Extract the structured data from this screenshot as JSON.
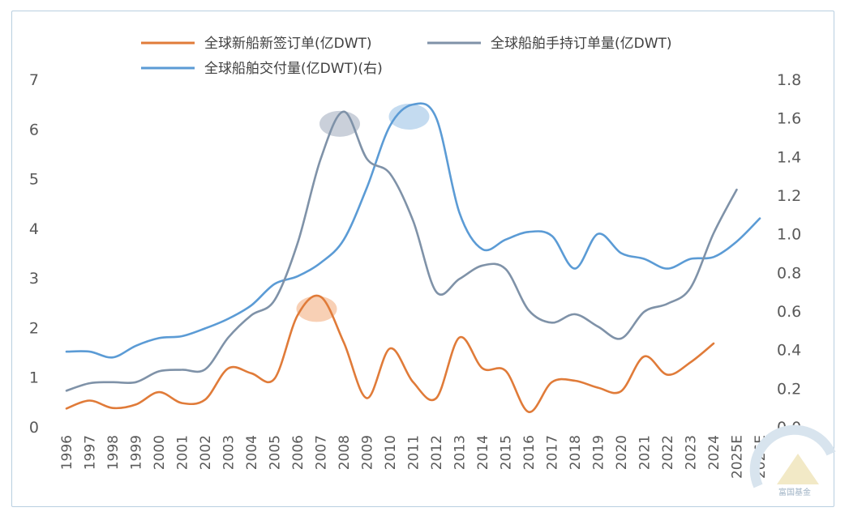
{
  "chart_data": {
    "type": "line",
    "title": "",
    "xlabel": "",
    "ylabel": "",
    "x": [
      "1996",
      "1997",
      "1998",
      "1999",
      "2000",
      "2001",
      "2002",
      "2003",
      "2004",
      "2005",
      "2006",
      "2007",
      "2008",
      "2009",
      "2010",
      "2011",
      "2012",
      "2013",
      "2014",
      "2015",
      "2016",
      "2017",
      "2018",
      "2019",
      "2020",
      "2021",
      "2022",
      "2023",
      "2024",
      "2025E",
      "2026E"
    ],
    "y_left_lim": [
      0,
      7
    ],
    "y_left_ticks": [
      "0",
      "1",
      "2",
      "3",
      "4",
      "5",
      "6",
      "7"
    ],
    "y_right_lim": [
      0,
      1.8
    ],
    "y_right_ticks": [
      "0.0",
      "0.2",
      "0.4",
      "0.6",
      "0.8",
      "1.0",
      "1.2",
      "1.4",
      "1.6",
      "1.8"
    ],
    "legend_position": "top",
    "grid": false,
    "series": [
      {
        "name": "全球新船新签订单(亿DWT)",
        "axis": "left",
        "color": "#e07b39",
        "values": [
          0.37,
          0.53,
          0.38,
          0.45,
          0.7,
          0.48,
          0.55,
          1.18,
          1.08,
          0.97,
          2.25,
          2.62,
          1.7,
          0.58,
          1.58,
          0.9,
          0.58,
          1.8,
          1.18,
          1.13,
          0.3,
          0.9,
          0.93,
          0.79,
          0.72,
          1.42,
          1.05,
          1.3,
          1.68,
          null,
          null
        ]
      },
      {
        "name": "全球船舶手持订单量(亿DWT)",
        "axis": "left",
        "color": "#7f92a8",
        "values": [
          0.73,
          0.88,
          0.9,
          0.9,
          1.12,
          1.15,
          1.16,
          1.8,
          2.25,
          2.55,
          3.7,
          5.4,
          6.35,
          5.4,
          5.1,
          4.15,
          2.72,
          2.98,
          3.25,
          3.18,
          2.35,
          2.1,
          2.27,
          2.02,
          1.78,
          2.32,
          2.48,
          2.8,
          3.9,
          4.78,
          null
        ]
      },
      {
        "name": "全球船舶交付量(亿DWT)(右)",
        "axis": "right",
        "color": "#5b9bd5",
        "values": [
          0.39,
          0.39,
          0.36,
          0.42,
          0.46,
          0.47,
          0.51,
          0.56,
          0.63,
          0.74,
          0.78,
          0.85,
          0.97,
          1.24,
          1.56,
          1.67,
          1.6,
          1.11,
          0.92,
          0.97,
          1.01,
          0.99,
          0.82,
          1.0,
          0.9,
          0.87,
          0.82,
          0.87,
          0.88,
          0.96,
          1.08
        ]
      }
    ],
    "annotations": [
      {
        "type": "highlight-ellipse",
        "series": 0,
        "x": "2007",
        "color": "#f4b183"
      },
      {
        "type": "highlight-ellipse",
        "series": 1,
        "x": "2008",
        "color": "#a6b0c2"
      },
      {
        "type": "highlight-ellipse",
        "series": 2,
        "x": "2011",
        "color": "#9dc3e6"
      }
    ]
  },
  "watermark": {
    "text": "富国基金",
    "color": "#9fb3c5"
  }
}
